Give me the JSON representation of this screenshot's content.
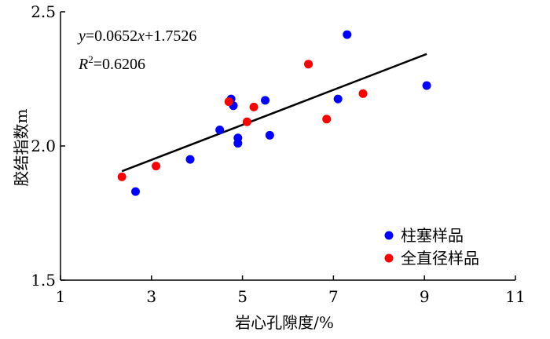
{
  "chart_data": {
    "type": "scatter",
    "xlabel": "岩心孔隙度/%",
    "ylabel": "胶结指数m",
    "xlim": [
      1,
      11
    ],
    "ylim": [
      1.5,
      2.5
    ],
    "xticks": [
      1,
      3,
      5,
      7,
      9,
      11
    ],
    "yticks": [
      1.5,
      2.0,
      2.5
    ],
    "x_tick_labels": [
      "1",
      "3",
      "5",
      "7",
      "9",
      "11"
    ],
    "y_tick_labels": [
      "1.5",
      "2.0",
      "2.5"
    ],
    "grid": false,
    "legend_position": "bottom-right",
    "series": [
      {
        "name": "柱塞样品",
        "color": "#0000ff",
        "points": [
          [
            2.65,
            1.83
          ],
          [
            3.85,
            1.95
          ],
          [
            4.5,
            2.06
          ],
          [
            4.75,
            2.175
          ],
          [
            4.8,
            2.15
          ],
          [
            4.9,
            2.03
          ],
          [
            4.9,
            2.01
          ],
          [
            5.5,
            2.17
          ],
          [
            5.6,
            2.04
          ],
          [
            7.1,
            2.175
          ],
          [
            7.3,
            2.415
          ],
          [
            9.05,
            2.225
          ]
        ]
      },
      {
        "name": "全直径样品",
        "color": "#ff0000",
        "points": [
          [
            2.35,
            1.885
          ],
          [
            3.1,
            1.925
          ],
          [
            4.7,
            2.165
          ],
          [
            5.1,
            2.09
          ],
          [
            5.25,
            2.145
          ],
          [
            6.45,
            2.305
          ],
          [
            6.85,
            2.1
          ],
          [
            7.65,
            2.195
          ]
        ]
      }
    ],
    "fit_line": {
      "slope": 0.0652,
      "intercept": 1.7526,
      "x_range": [
        2.35,
        9.05
      ],
      "color": "#000000"
    },
    "annotations": {
      "equation": {
        "y_var": "y",
        "eq1": "=0.0652",
        "x_var": "x",
        "eq2": "+1.7526"
      },
      "r_squared": {
        "r_letter": "R",
        "sup": "2",
        "value": "=0.6206"
      }
    }
  }
}
